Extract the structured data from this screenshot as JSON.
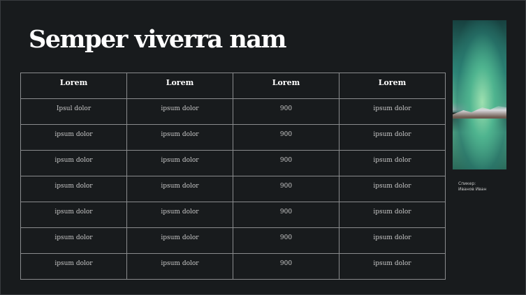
{
  "title": "Semper viverra nam",
  "table": {
    "headers": [
      "Lorem",
      "Lorem",
      "Lorem",
      "Lorem"
    ],
    "rows": [
      [
        "Ipsul dolor",
        "ipsum dolor",
        "900",
        "ipsum dolor"
      ],
      [
        "ipsum dolor",
        "ipsum dolor",
        "900",
        "ipsum dolor"
      ],
      [
        "ipsum dolor",
        "ipsum dolor",
        "900",
        "ipsum dolor"
      ],
      [
        "ipsum dolor",
        "ipsum dolor",
        "900",
        "ipsum dolor"
      ],
      [
        "ipsum dolor",
        "ipsum dolor",
        "900",
        "ipsum dolor"
      ],
      [
        "ipsum dolor",
        "ipsum dolor",
        "900",
        "ipsum dolor"
      ],
      [
        "ipsum dolor",
        "ipsum dolor",
        "900",
        "ipsum dolor"
      ]
    ]
  },
  "speaker": {
    "label": "Спикер:",
    "name": "Иванов Иван"
  }
}
